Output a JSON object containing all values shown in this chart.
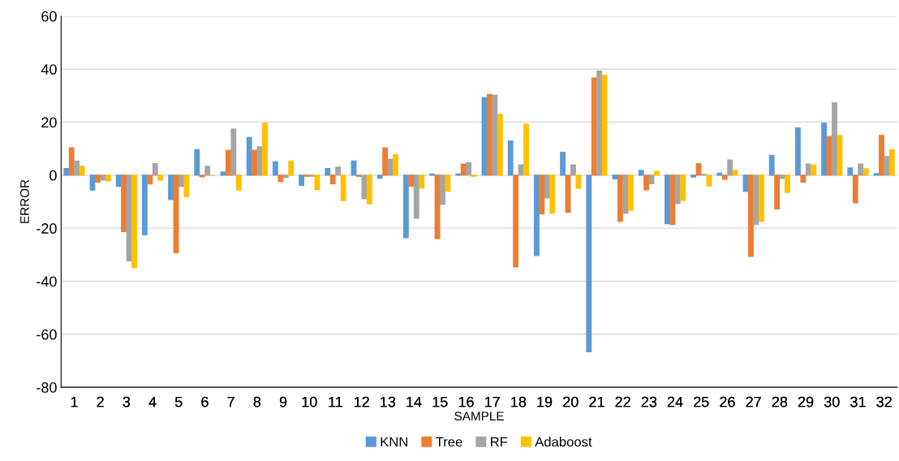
{
  "chart_data": {
    "type": "bar",
    "xlabel": "SAMPLE",
    "ylabel": "ERROR",
    "categories": [
      "1",
      "2",
      "3",
      "4",
      "5",
      "6",
      "7",
      "8",
      "9",
      "10",
      "11",
      "12",
      "13",
      "14",
      "15",
      "16",
      "17",
      "18",
      "19",
      "20",
      "21",
      "22",
      "23",
      "24",
      "25",
      "26",
      "27",
      "28",
      "29",
      "30",
      "31",
      "32"
    ],
    "series": [
      {
        "name": "KNN",
        "color": "#5b9bd5",
        "values": [
          2.5,
          -5.6,
          -4.2,
          -22.4,
          -9.2,
          9.6,
          1.2,
          14.2,
          5,
          -3.8,
          2.5,
          5.3,
          -1.1,
          -23.6,
          0.4,
          0.4,
          29.2,
          12.9,
          -30.3,
          8.6,
          -66.6,
          -1.4,
          1.8,
          -18.3,
          -0.7,
          0.7,
          -6.1,
          7.5,
          17.8,
          19.6,
          2.7,
          0.6
        ]
      },
      {
        "name": "Tree",
        "color": "#ed7d31",
        "values": [
          10.3,
          -2.6,
          -21.3,
          -3.3,
          -29.2,
          -0.6,
          9.4,
          9.4,
          -2.4,
          -0.4,
          -3.2,
          -0.4,
          10.3,
          -4.1,
          -23.9,
          4.2,
          30.4,
          -34.6,
          -14.6,
          -14,
          36.6,
          -17.4,
          -5.5,
          -18.6,
          4.3,
          -1.5,
          -30.6,
          -12.7,
          -2.6,
          14.6,
          -10.4,
          15
        ]
      },
      {
        "name": "RF",
        "color": "#a5a5a5",
        "values": [
          5.3,
          -1.8,
          -32.3,
          4.3,
          -4.2,
          3.3,
          17.4,
          10.7,
          -0.8,
          -0.4,
          3,
          -8.9,
          6,
          -16.2,
          -10.9,
          4.6,
          30.1,
          3.9,
          -8.6,
          3.9,
          39.2,
          -14.3,
          -3.2,
          -10.7,
          0.3,
          5.7,
          -18.6,
          -1.2,
          4.2,
          27.3,
          4.2,
          7
        ]
      },
      {
        "name": "Adaboost",
        "color": "#ffc000",
        "values": [
          3.3,
          -2.1,
          -34.9,
          -1.8,
          -8,
          0,
          -5.6,
          19.6,
          5.3,
          -5.4,
          -9.6,
          -10.8,
          7.8,
          -4.9,
          -6,
          -0.4,
          22.9,
          19.2,
          -14.3,
          -4.9,
          37.6,
          -13.2,
          1.4,
          -9.5,
          -4.1,
          1.7,
          -17.4,
          -6.5,
          3.8,
          14.9,
          2.4,
          9.5
        ]
      }
    ],
    "ylim": [
      -80,
      60
    ],
    "yticks": [
      -80,
      -60,
      -40,
      -20,
      0,
      20,
      40,
      60
    ],
    "grid": "y",
    "legend": "bottom"
  }
}
